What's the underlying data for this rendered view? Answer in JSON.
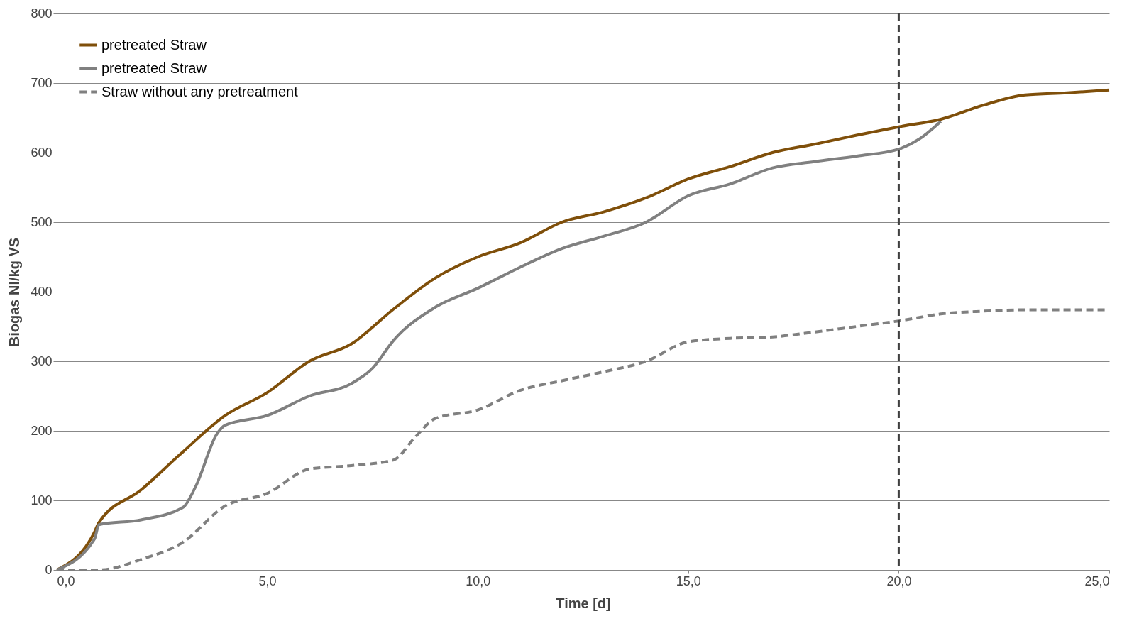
{
  "chart_data": {
    "type": "line",
    "xlabel": "Time [d]",
    "ylabel": "Biogas Nl/kg VS",
    "xlim": [
      0,
      25
    ],
    "xticks": [
      {
        "value": 0,
        "label": "0,0"
      },
      {
        "value": 5,
        "label": "5,0"
      },
      {
        "value": 10,
        "label": "10,0"
      },
      {
        "value": 15,
        "label": "15,0"
      },
      {
        "value": 20,
        "label": "20,0"
      },
      {
        "value": 25,
        "label": "25,0"
      }
    ],
    "ylim": [
      0,
      800
    ],
    "yticks": [
      0,
      100,
      200,
      300,
      400,
      500,
      600,
      700,
      800
    ],
    "grid": "y",
    "legend": "top left",
    "series": [
      {
        "name": "pretreated Straw",
        "color": "#7f4f0a",
        "line_style": "solid",
        "x": [
          0,
          0.9,
          1,
          2,
          3,
          4,
          5,
          6,
          7,
          8,
          9,
          10,
          11,
          12,
          13,
          14,
          15,
          16,
          17,
          18,
          19,
          20,
          21,
          22,
          23,
          24,
          25
        ],
        "values": [
          0,
          55,
          68,
          115,
          170,
          222,
          255,
          300,
          325,
          375,
          420,
          450,
          470,
          500,
          515,
          535,
          562,
          580,
          600,
          612,
          625,
          637,
          648,
          668,
          683,
          686,
          690
        ]
      },
      {
        "name": "pretreated Straw",
        "color": "#808080",
        "line_style": "solid",
        "x": [
          0,
          0.9,
          1,
          2,
          3,
          3.3,
          3.8,
          4,
          5,
          6,
          7,
          7.5,
          8,
          9,
          10,
          11,
          12,
          13,
          14,
          15,
          16,
          17,
          18,
          19,
          20,
          20.5,
          21
        ],
        "values": [
          0,
          45,
          65,
          72,
          90,
          120,
          195,
          208,
          222,
          250,
          268,
          290,
          330,
          378,
          405,
          435,
          462,
          480,
          500,
          538,
          555,
          578,
          587,
          595,
          605,
          620,
          645
        ]
      },
      {
        "name": "Straw without any pretreatment",
        "color": "#808080",
        "line_style": "dashed",
        "x": [
          0,
          1,
          2,
          3,
          4,
          5,
          6,
          7,
          8,
          8.5,
          9,
          10,
          11,
          12,
          13,
          14,
          15,
          16,
          17,
          18,
          19,
          20,
          21,
          22,
          23,
          24,
          25
        ],
        "values": [
          0,
          0,
          15,
          40,
          92,
          110,
          145,
          150,
          158,
          190,
          218,
          230,
          258,
          272,
          285,
          300,
          328,
          333,
          335,
          342,
          350,
          358,
          368,
          372,
          374,
          374,
          374
        ]
      }
    ],
    "ref_lines": [
      {
        "axis": "x",
        "value": 20,
        "color": "#404040",
        "line_style": "dashed"
      }
    ]
  }
}
